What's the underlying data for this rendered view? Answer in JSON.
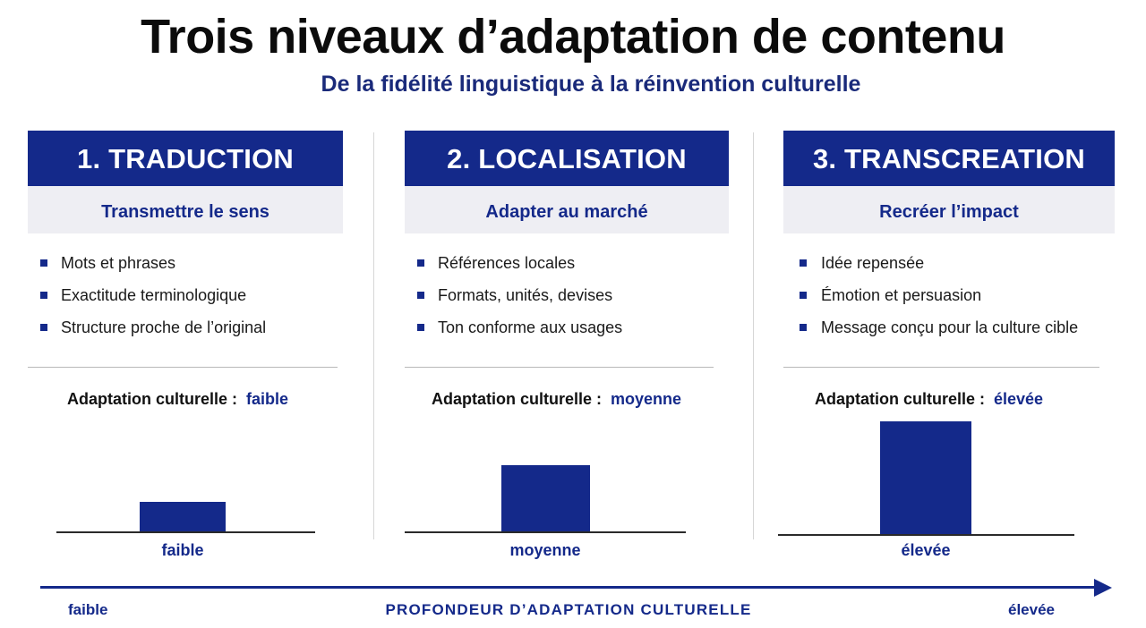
{
  "header": {
    "title": "Trois niveaux d’adaptation de contenu",
    "subtitle": "De la fidélité linguistique à la réinvention culturelle"
  },
  "columns": [
    {
      "title": "1. TRADUCTION",
      "subtitle": "Transmettre le sens",
      "bullets": [
        "Mots et phrases",
        "Exactitude terminologique",
        "Structure proche de l’original"
      ],
      "level_label": "Adaptation culturelle :",
      "level_value": "faible",
      "bar_label": "faible",
      "level_fraction": 0.27
    },
    {
      "title": "2. LOCALISATION",
      "subtitle": "Adapter au marché",
      "bullets": [
        "Références locales",
        "Formats, unités, devises",
        "Ton conforme aux usages"
      ],
      "level_label": "Adaptation culturelle :",
      "level_value": "moyenne",
      "bar_label": "moyenne",
      "level_fraction": 0.59
    },
    {
      "title": "3. TRANSCREATION",
      "subtitle": "Recréer l’impact",
      "bullets": [
        "Idée repensée",
        "Émotion et persuasion",
        "Message conçu pour la culture cible"
      ],
      "level_label": "Adaptation culturelle :",
      "level_value": "élevée",
      "bar_label": "élevée",
      "level_fraction": 1.0
    }
  ],
  "axis": {
    "low_label": "faible",
    "title": "PROFONDEUR D’ADAPTATION CULTURELLE",
    "high_label": "élevée"
  },
  "colors": {
    "primary": "#14298a",
    "subheader_bg": "#eeeef3"
  }
}
